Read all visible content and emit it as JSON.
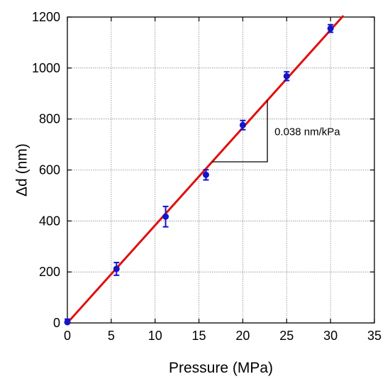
{
  "chart_data": {
    "type": "scatter",
    "title": "",
    "xlabel": "Pressure (MPa)",
    "ylabel": "Δd (nm)",
    "xlim": [
      0,
      35
    ],
    "ylim": [
      0,
      1200
    ],
    "xticks": [
      0,
      5,
      10,
      15,
      20,
      25,
      30,
      35
    ],
    "yticks": [
      0,
      200,
      400,
      600,
      800,
      1000,
      1200
    ],
    "grid": true,
    "legend": "none",
    "series": [
      {
        "marker_color": "#1414c8",
        "points": [
          {
            "x": 0,
            "y": 3,
            "err": 12
          },
          {
            "x": 5.6,
            "y": 212,
            "err": 25
          },
          {
            "x": 11.2,
            "y": 417,
            "err": 40
          },
          {
            "x": 15.8,
            "y": 581,
            "err": 20
          },
          {
            "x": 20.0,
            "y": 776,
            "err": 18
          },
          {
            "x": 25.0,
            "y": 968,
            "err": 17
          },
          {
            "x": 30.0,
            "y": 1155,
            "err": 15
          }
        ]
      }
    ],
    "fit_line": {
      "color": "#e01010",
      "slope": 38.3,
      "intercept": 0,
      "x_range": [
        0,
        31.4
      ]
    },
    "slope_annotation": {
      "text": "0.038 nm/kPa",
      "triangle": {
        "x1": 16.5,
        "x2": 22.8
      }
    }
  }
}
